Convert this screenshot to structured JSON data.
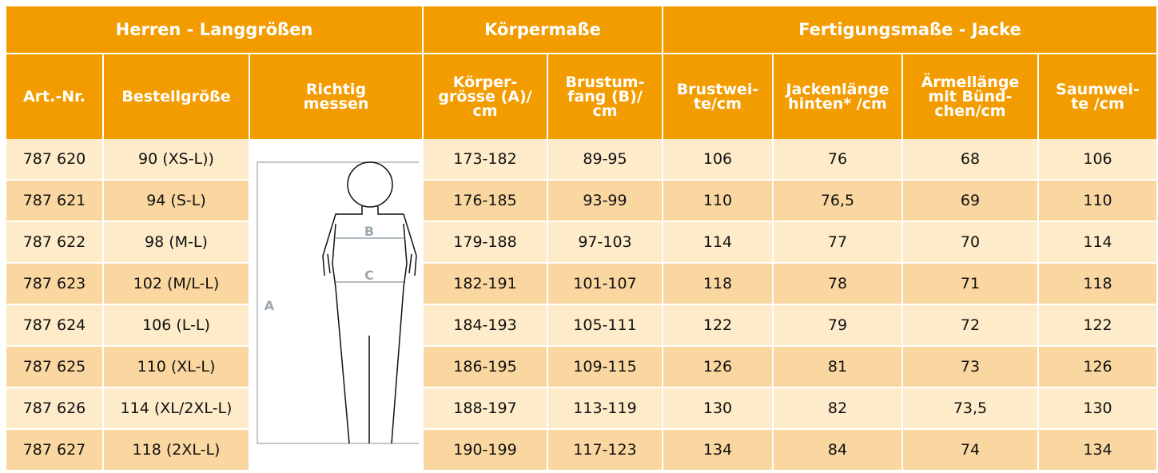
{
  "header": {
    "group_titles": [
      "Herren - Langgrößen",
      "Körpermaße",
      "Fertigungsmaße - Jacke"
    ],
    "column_titles": [
      "Art.-Nr.",
      "Bestellgröße",
      "Richtig\nmessen",
      "Körper-\ngrösse (A)/\ncm",
      "Brustum-\nfang  (B)/\ncm",
      "Brustwei-\nte/cm",
      "Jackenlänge\nhinten* /cm",
      "Ärmellänge\nmit Bünd-\nchen/cm",
      "Saumwei-\nte /cm"
    ]
  },
  "figure_labels": [
    "A",
    "B",
    "C"
  ],
  "table": {
    "rows": [
      [
        "787 620",
        "90 (XS-L))",
        "173-182",
        "89-95",
        "106",
        "76",
        "68",
        "106"
      ],
      [
        "787 621",
        "94 (S-L)",
        "176-185",
        "93-99",
        "110",
        "76,5",
        "69",
        "110"
      ],
      [
        "787 622",
        "98 (M-L)",
        "179-188",
        "97-103",
        "114",
        "77",
        "70",
        "114"
      ],
      [
        "787 623",
        "102 (M/L-L)",
        "182-191",
        "101-107",
        "118",
        "78",
        "71",
        "118"
      ],
      [
        "787 624",
        "106 (L-L)",
        "184-193",
        "105-111",
        "122",
        "79",
        "72",
        "122"
      ],
      [
        "787 625",
        "110 (XL-L)",
        "186-195",
        "109-115",
        "126",
        "81",
        "73",
        "126"
      ],
      [
        "787 626",
        "114 (XL/2XL-L)",
        "188-197",
        "113-119",
        "130",
        "82",
        "73,5",
        "130"
      ],
      [
        "787 627",
        "118 (2XL-L)",
        "190-199",
        "117-123",
        "134",
        "84",
        "74",
        "134"
      ]
    ]
  }
}
